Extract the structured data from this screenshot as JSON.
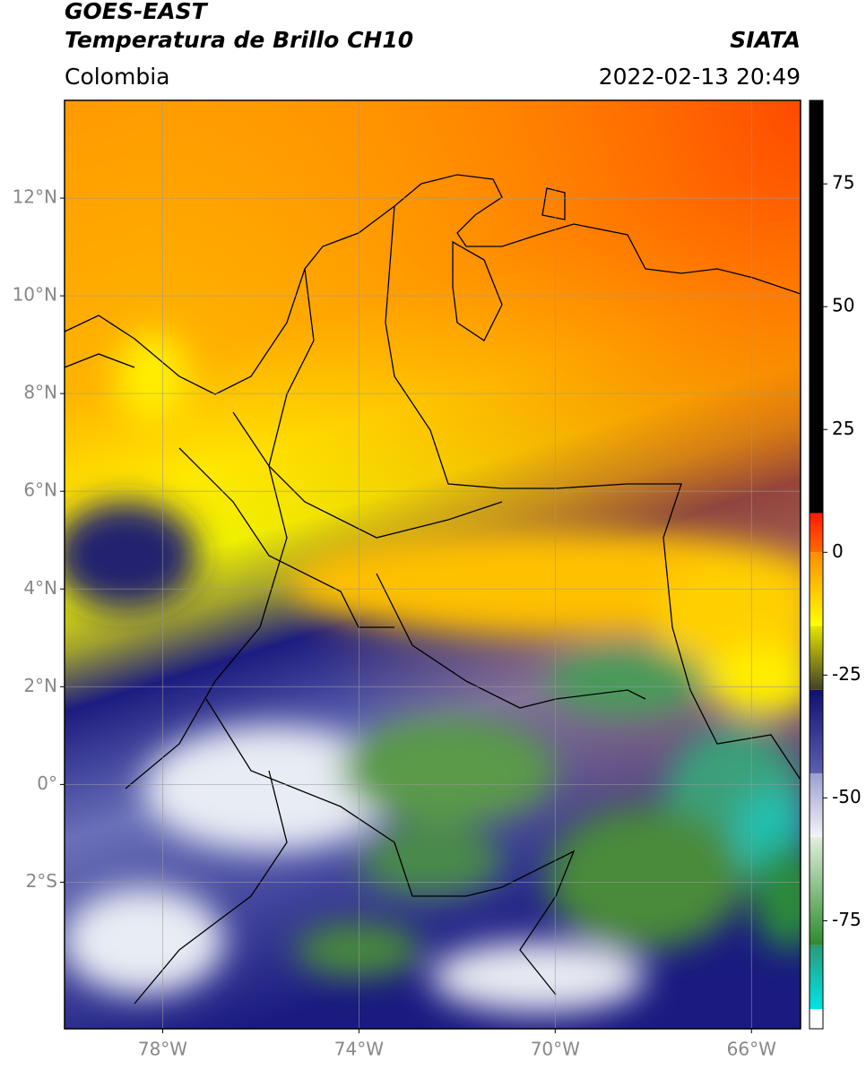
{
  "header": {
    "title": "GOES-EAST",
    "subtitle": "Temperatura de Brillo CH10",
    "source": "SIATA",
    "region": "Colombia",
    "datetime": "2022-02-13 20:49"
  },
  "map": {
    "xlim": [
      -80,
      -65
    ],
    "ylim": [
      -5,
      14
    ],
    "xticks": [
      {
        "value": -78,
        "label": "78°W"
      },
      {
        "value": -74,
        "label": "74°W"
      },
      {
        "value": -70,
        "label": "70°W"
      },
      {
        "value": -66,
        "label": "66°W"
      }
    ],
    "yticks": [
      {
        "value": -2,
        "label": "2°S"
      },
      {
        "value": 0,
        "label": "0°"
      },
      {
        "value": 2,
        "label": "2°N"
      },
      {
        "value": 4,
        "label": "4°N"
      },
      {
        "value": 6,
        "label": "6°N"
      },
      {
        "value": 8,
        "label": "8°N"
      },
      {
        "value": 10,
        "label": "10°N"
      },
      {
        "value": 12,
        "label": "12°N"
      }
    ],
    "grid": true
  },
  "colorbar": {
    "lim": [
      -97,
      92
    ],
    "ticks": [
      75,
      50,
      25,
      0,
      -25,
      -50,
      -75
    ],
    "segments": [
      {
        "from": -97,
        "to": -93,
        "colors": [
          "#ffffff",
          "#ffffff"
        ]
      },
      {
        "from": -93,
        "to": -80,
        "colors": [
          "#00e5e5",
          "#2a9a7a"
        ]
      },
      {
        "from": -80,
        "to": -58,
        "colors": [
          "#2d8a2d",
          "#e0eedc"
        ]
      },
      {
        "from": -58,
        "to": -45,
        "colors": [
          "#f4f4f8",
          "#9aa0d0"
        ]
      },
      {
        "from": -45,
        "to": -28,
        "colors": [
          "#5a60b0",
          "#101070"
        ]
      },
      {
        "from": -28,
        "to": -15,
        "colors": [
          "#404028",
          "#e6e600"
        ]
      },
      {
        "from": -15,
        "to": 0,
        "colors": [
          "#ffff00",
          "#ff8c00"
        ]
      },
      {
        "from": 0,
        "to": 8,
        "colors": [
          "#ff6a00",
          "#ff1a00"
        ]
      },
      {
        "from": 8,
        "to": 92,
        "colors": [
          "#000000",
          "#000000"
        ]
      }
    ]
  }
}
